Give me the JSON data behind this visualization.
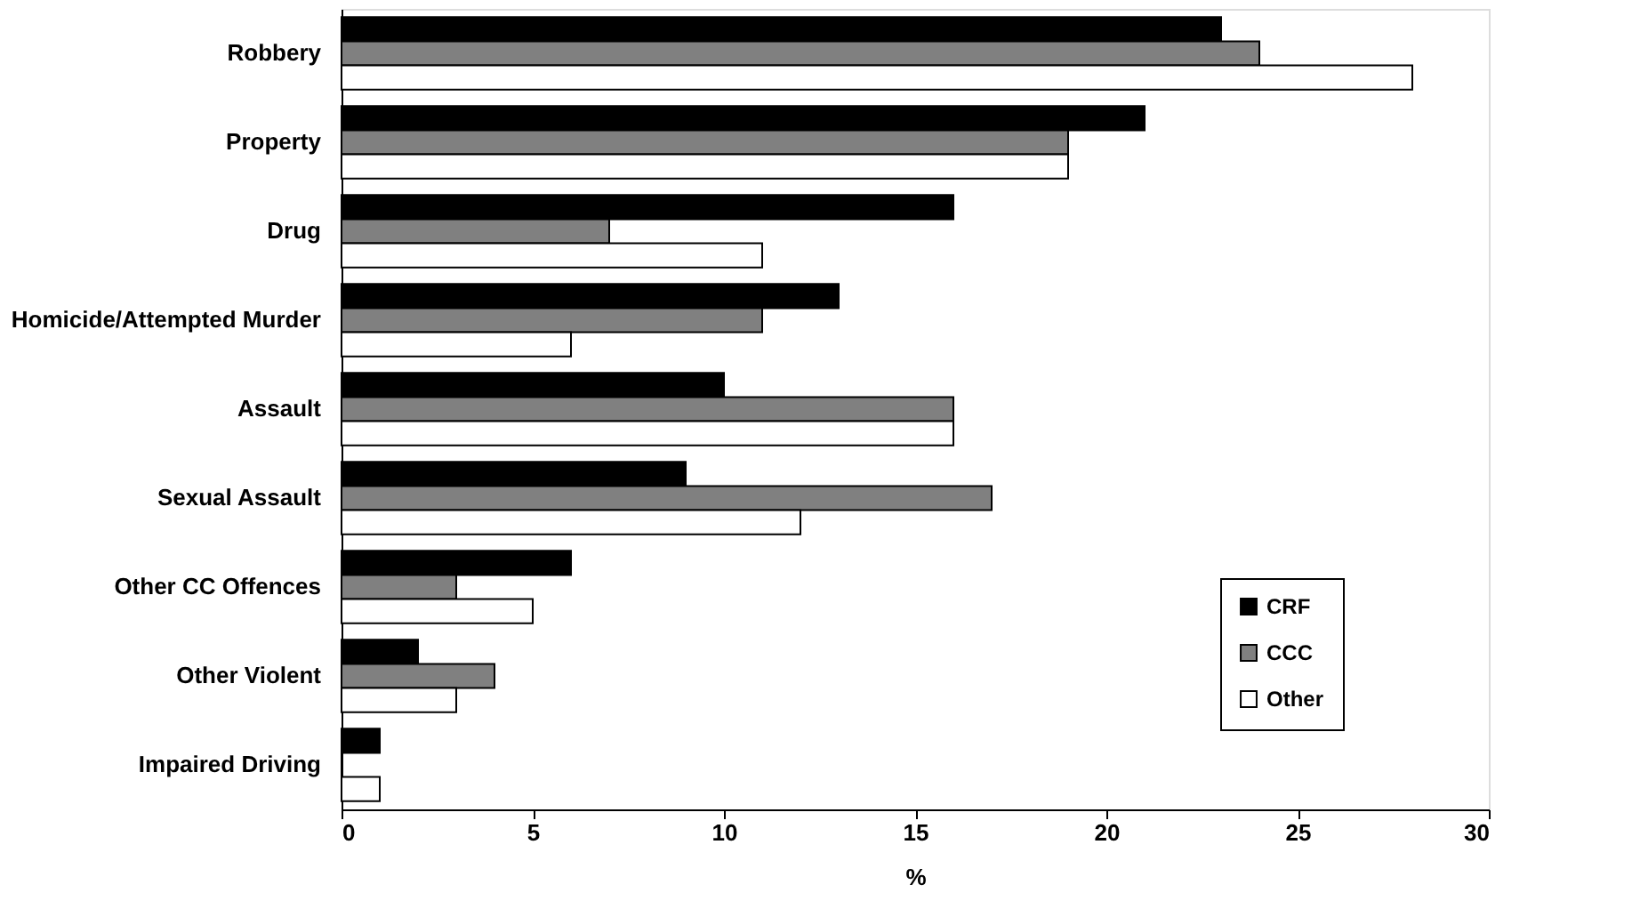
{
  "chart_data": {
    "type": "bar",
    "orientation": "horizontal",
    "xlabel": "%",
    "categories": [
      "Robbery",
      "Property",
      "Drug",
      "Homicide/Attempted Murder",
      "Assault",
      "Sexual Assault",
      "Other CC Offences",
      "Other Violent",
      "Impaired Driving"
    ],
    "series": [
      {
        "name": "CRF",
        "color": "#000000",
        "values": [
          23,
          21,
          16,
          13,
          10,
          9,
          6,
          2,
          1
        ]
      },
      {
        "name": "CCC",
        "color": "#808080",
        "values": [
          24,
          19,
          7,
          11,
          16,
          17,
          3,
          4,
          0
        ]
      },
      {
        "name": "Other",
        "color": "#ffffff",
        "values": [
          28,
          19,
          11,
          6,
          16,
          12,
          5,
          3,
          1
        ]
      }
    ],
    "xlim": [
      0,
      30
    ],
    "xticks": [
      0,
      5,
      10,
      15,
      20,
      25,
      30
    ],
    "grid": false,
    "legend": "right"
  }
}
